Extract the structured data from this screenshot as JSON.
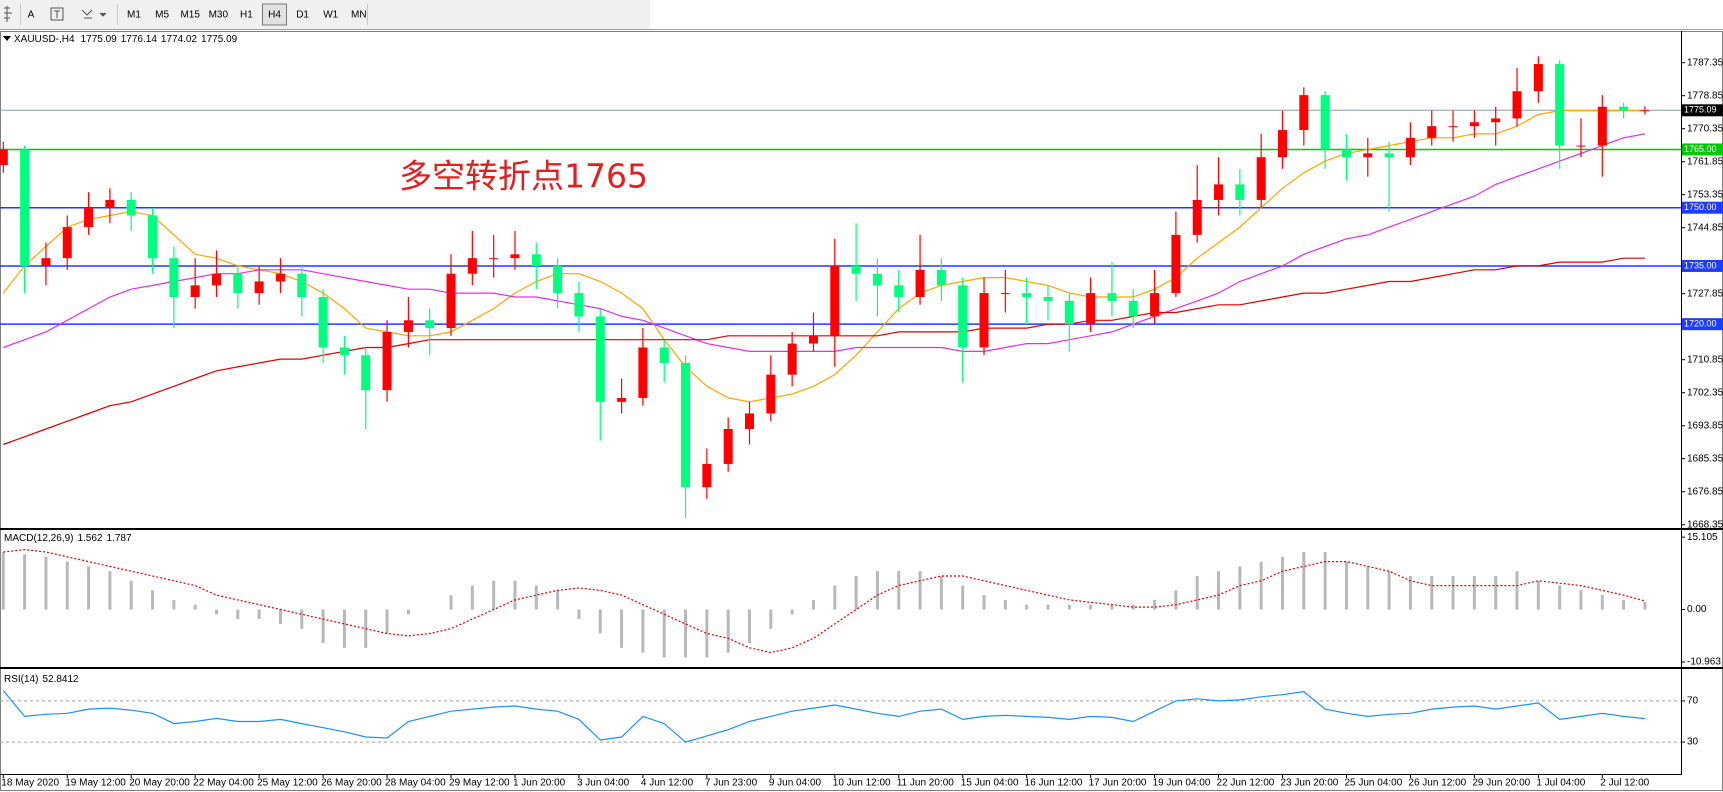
{
  "toolbar": {
    "tools": [
      "A"
    ],
    "timeframes": [
      "M1",
      "M5",
      "M15",
      "M30",
      "H1",
      "H4",
      "D1",
      "W1",
      "MN"
    ],
    "active": 5
  },
  "chart_data": {
    "type": "candlestick",
    "title": "XAUUSD-,H4",
    "annotation": "多空转折点1765",
    "up_color": "#ff0000",
    "down_color": "#00ff7f",
    "categories": [
      "18 May 2020",
      null,
      null,
      "19 May 12:00",
      null,
      null,
      "20 May 20:00",
      null,
      null,
      "22 May 04:00",
      null,
      null,
      "25 May 12:00",
      null,
      null,
      "26 May 20:00",
      null,
      null,
      "28 May 04:00",
      null,
      null,
      "29 May 12:00",
      null,
      null,
      "1 Jun 20:00",
      null,
      null,
      "3 Jun 04:00",
      null,
      null,
      "4 Jun 12:00",
      null,
      null,
      "7 Jun 23:00",
      null,
      null,
      "9 Jun 04:00",
      null,
      null,
      "10 Jun 12:00",
      null,
      null,
      "11 Jun 20:00",
      null,
      null,
      "15 Jun 04:00",
      null,
      null,
      "16 Jun 12:00",
      null,
      null,
      "17 Jun 20:00",
      null,
      null,
      "19 Jun 04:00",
      null,
      null,
      "22 Jun 12:00",
      null,
      null,
      "23 Jun 20:00",
      null,
      null,
      "25 Jun 04:00",
      null,
      null,
      "26 Jun 12:00",
      null,
      null,
      "29 Jun 20:00",
      null,
      null,
      "1 Jul 04:00",
      null,
      null,
      "2 Jul 12:00",
      null,
      null
    ],
    "open": [
      1761,
      1765,
      1735,
      1737,
      1745,
      1750,
      1752,
      1748,
      1737,
      1727,
      1730,
      1733,
      1728,
      1731,
      1733,
      1727,
      1714,
      1712,
      1703,
      1718,
      1721,
      1719,
      1733,
      1737,
      1737,
      1738,
      1735,
      1728,
      1722,
      1700,
      1701,
      1714,
      1710,
      1678,
      1684,
      1693,
      1697,
      1707,
      1715,
      1717,
      1735,
      1733,
      1730,
      1727,
      1734,
      1730,
      1714,
      1728,
      1728,
      1727,
      1726,
      1720,
      1728,
      1726,
      1722,
      1728,
      1743,
      1752,
      1756,
      1752,
      1763,
      1770,
      1779,
      1765,
      1763,
      1764,
      1763,
      1768,
      1771,
      1771,
      1772,
      1773,
      1780,
      1787,
      1766,
      1766,
      1776,
      1775.09
    ],
    "high": [
      1767,
      1766,
      1741,
      1748,
      1754,
      1755,
      1754,
      1750,
      1740,
      1737,
      1739,
      1735,
      1735,
      1737,
      1735,
      1729,
      1717,
      1714,
      1721,
      1727,
      1724,
      1738,
      1744,
      1743,
      1744,
      1741,
      1737,
      1731,
      1724,
      1706,
      1719,
      1716,
      1712,
      1688,
      1696,
      1700,
      1712,
      1718,
      1723,
      1742,
      1746,
      1737,
      1734,
      1743,
      1737,
      1732,
      1732,
      1734,
      1732,
      1730,
      1728,
      1732,
      1736,
      1729,
      1734,
      1749,
      1761,
      1763,
      1760,
      1769,
      1775,
      1781,
      1780,
      1769,
      1768,
      1767,
      1772,
      1775,
      1775,
      1775,
      1776,
      1786,
      1789,
      1788,
      1773,
      1779,
      1777,
      1776.14
    ],
    "low": [
      1759,
      1728,
      1730,
      1734,
      1743,
      1746,
      1744,
      1733,
      1719,
      1724,
      1727,
      1724,
      1725,
      1728,
      1722,
      1710,
      1707,
      1693,
      1700,
      1714,
      1712,
      1717,
      1730,
      1732,
      1734,
      1729,
      1724,
      1718,
      1690,
      1697,
      1699,
      1705,
      1670,
      1675,
      1682,
      1689,
      1695,
      1704,
      1713,
      1709,
      1726,
      1722,
      1723,
      1725,
      1726,
      1705,
      1712,
      1723,
      1720,
      1721,
      1713,
      1718,
      1722,
      1719,
      1720,
      1727,
      1741,
      1748,
      1748,
      1750,
      1760,
      1766,
      1760,
      1757,
      1758,
      1749,
      1761,
      1766,
      1767,
      1768,
      1766,
      1771,
      1777,
      1760,
      1763,
      1758,
      1773,
      1774.02
    ],
    "close": [
      1765,
      1735,
      1737,
      1745,
      1750,
      1752,
      1748,
      1737,
      1727,
      1730,
      1733,
      1728,
      1731,
      1733,
      1727,
      1714,
      1712,
      1703,
      1718,
      1721,
      1719,
      1733,
      1737,
      1737,
      1738,
      1735,
      1728,
      1722,
      1700,
      1701,
      1714,
      1710,
      1678,
      1684,
      1693,
      1697,
      1707,
      1715,
      1717,
      1735,
      1733,
      1730,
      1727,
      1734,
      1730,
      1714,
      1728,
      1728,
      1727,
      1726,
      1720,
      1728,
      1726,
      1722,
      1728,
      1743,
      1752,
      1756,
      1752,
      1763,
      1770,
      1779,
      1765,
      1763,
      1764,
      1763,
      1768,
      1771,
      1771,
      1772,
      1773,
      1780,
      1787,
      1766,
      1766,
      1776,
      1775,
      1775.09
    ],
    "moving_averages": [
      {
        "color": "#ffa500",
        "values": [
          1728,
          1735,
          1740,
          1745,
          1747,
          1748,
          1749,
          1748,
          1743,
          1738,
          1737,
          1735,
          1734,
          1733,
          1731,
          1728,
          1724,
          1719,
          1718,
          1717,
          1717,
          1718,
          1721,
          1724,
          1728,
          1731,
          1733,
          1733,
          1731,
          1728,
          1724,
          1716,
          1709,
          1704,
          1701,
          1700,
          1701,
          1702,
          1704,
          1707,
          1712,
          1718,
          1724,
          1728,
          1730,
          1731,
          1732,
          1732,
          1731,
          1730,
          1728,
          1727,
          1727,
          1727,
          1729,
          1732,
          1737,
          1741,
          1745,
          1750,
          1755,
          1759,
          1762,
          1764,
          1765,
          1766,
          1767,
          1768,
          1768,
          1769,
          1769,
          1771,
          1774,
          1775,
          1775,
          1775,
          1775,
          1775
        ]
      },
      {
        "color": "#e030e8",
        "values": [
          1714,
          1716,
          1718,
          1721,
          1724,
          1727,
          1729,
          1730,
          1731,
          1732,
          1733,
          1733,
          1734,
          1734,
          1734,
          1733,
          1732,
          1731,
          1730,
          1729,
          1729,
          1728,
          1728,
          1728,
          1727,
          1727,
          1726,
          1725,
          1724,
          1722,
          1721,
          1719,
          1717,
          1715,
          1714,
          1713,
          1713,
          1713,
          1713,
          1713,
          1714,
          1714,
          1714,
          1714,
          1714,
          1713,
          1713,
          1714,
          1715,
          1715,
          1716,
          1717,
          1718,
          1720,
          1722,
          1724,
          1726,
          1728,
          1731,
          1733,
          1735,
          1738,
          1740,
          1742,
          1743,
          1745,
          1747,
          1749,
          1751,
          1753,
          1756,
          1758,
          1760,
          1762,
          1764,
          1766,
          1768,
          1769
        ]
      },
      {
        "color": "#e00000",
        "values": [
          1689,
          1691,
          1693,
          1695,
          1697,
          1699,
          1700,
          1702,
          1704,
          1706,
          1708,
          1709,
          1710,
          1711,
          1711,
          1712,
          1713,
          1714,
          1714,
          1715,
          1716,
          1716,
          1716,
          1716,
          1716,
          1716,
          1716,
          1716,
          1716,
          1716,
          1716,
          1716,
          1716,
          1716,
          1717,
          1717,
          1717,
          1717,
          1717,
          1717,
          1717,
          1717,
          1718,
          1718,
          1718,
          1718,
          1719,
          1719,
          1719,
          1720,
          1720,
          1721,
          1721,
          1722,
          1723,
          1723,
          1724,
          1725,
          1725,
          1726,
          1727,
          1728,
          1728,
          1729,
          1730,
          1731,
          1731,
          1732,
          1733,
          1734,
          1734,
          1735,
          1735,
          1736,
          1736,
          1736,
          1737,
          1737
        ]
      }
    ],
    "hlines": [
      {
        "value": 1765,
        "label": "1765.00",
        "color": "#00c800"
      },
      {
        "value": 1750,
        "label": "1750.00",
        "color": "#1e3cff"
      },
      {
        "value": 1735,
        "label": "1735.00",
        "color": "#1e3cff"
      },
      {
        "value": 1720,
        "label": "1720.00",
        "color": "#1e3cff"
      }
    ],
    "price_line_color": "#8a9bb0",
    "ylim": [
      1667.5,
      1795.0
    ],
    "yticks": [
      {
        "value": 1668.35,
        "label": "1668.35"
      },
      {
        "value": 1676.85,
        "label": "1676.85"
      },
      {
        "value": 1685.35,
        "label": "1685.35"
      },
      {
        "value": 1693.85,
        "label": "1693.85"
      },
      {
        "value": 1702.35,
        "label": "1702.35"
      },
      {
        "value": 1710.85,
        "label": "1710.85"
      },
      {
        "value": 1727.85,
        "label": "1727.85"
      },
      {
        "value": 1744.85,
        "label": "1744.85"
      },
      {
        "value": 1753.35,
        "label": "1753.35"
      },
      {
        "value": 1761.85,
        "label": "1761.85"
      },
      {
        "value": 1770.35,
        "label": "1770.35"
      },
      {
        "value": 1778.85,
        "label": "1778.85"
      },
      {
        "value": 1787.35,
        "label": "1787.35"
      }
    ],
    "macd": {
      "title": "MACD(12,26,9)",
      "histogram_color": "#b8b8b8",
      "signal_color": "#e00000",
      "histogram": [
        12,
        11.5,
        11,
        10,
        9,
        8,
        6,
        4,
        2,
        1,
        -1,
        -2,
        -2,
        -3,
        -4,
        -7,
        -8,
        -8,
        -5,
        -1,
        0,
        3,
        5,
        6,
        6,
        5,
        4,
        -2,
        -5,
        -8,
        -9,
        -10,
        -10,
        -10,
        -9,
        -7,
        -4,
        -1,
        2,
        5,
        7,
        8,
        8,
        8,
        7,
        5,
        3,
        2,
        1,
        1,
        1,
        1,
        1,
        1,
        2,
        4,
        7,
        8,
        9,
        10,
        11,
        12,
        12,
        10,
        9,
        8,
        7,
        7,
        7,
        7,
        7,
        8,
        6,
        5,
        4,
        3,
        2,
        1.562
      ],
      "signal": [
        12,
        12.5,
        12,
        11,
        10,
        9,
        8,
        7,
        6,
        5,
        3,
        2,
        1,
        0,
        -1,
        -2,
        -3,
        -4,
        -5,
        -5.5,
        -5,
        -4,
        -2,
        0,
        2,
        3,
        4,
        4.5,
        4,
        3,
        1,
        -1,
        -3,
        -5,
        -6,
        -8,
        -9,
        -8,
        -6,
        -3,
        0,
        3,
        5,
        6,
        7,
        7,
        6,
        5,
        4,
        3,
        2,
        1.5,
        1,
        0.5,
        0.5,
        1,
        2,
        3,
        5,
        6,
        8,
        9,
        10,
        10,
        9,
        8,
        6,
        5,
        5,
        5,
        5,
        5,
        6,
        5.5,
        5,
        4,
        3,
        1.787
      ],
      "ylim": [
        -12.0,
        16.6
      ],
      "yticks": [
        -10.963,
        {
          "value": 0,
          "label": "0.00"
        },
        15.105
      ]
    },
    "rsi": {
      "title": "RSI(14)",
      "color": "#1e90ff",
      "values": [
        80,
        55,
        57,
        58,
        62,
        63,
        61,
        58,
        48,
        50,
        53,
        50,
        50,
        52,
        48,
        44,
        40,
        35,
        34,
        50,
        55,
        60,
        62,
        64,
        65,
        62,
        60,
        52,
        32,
        35,
        55,
        48,
        30,
        36,
        42,
        50,
        55,
        60,
        63,
        66,
        62,
        58,
        55,
        60,
        62,
        52,
        55,
        56,
        55,
        54,
        52,
        55,
        54,
        50,
        60,
        70,
        72,
        70,
        71,
        74,
        76,
        79,
        62,
        58,
        55,
        57,
        58,
        62,
        64,
        65,
        62,
        65,
        68,
        52,
        55,
        58,
        55,
        52.8412
      ],
      "ylim": [
        0,
        100
      ],
      "yticks": [
        30,
        70
      ]
    }
  }
}
